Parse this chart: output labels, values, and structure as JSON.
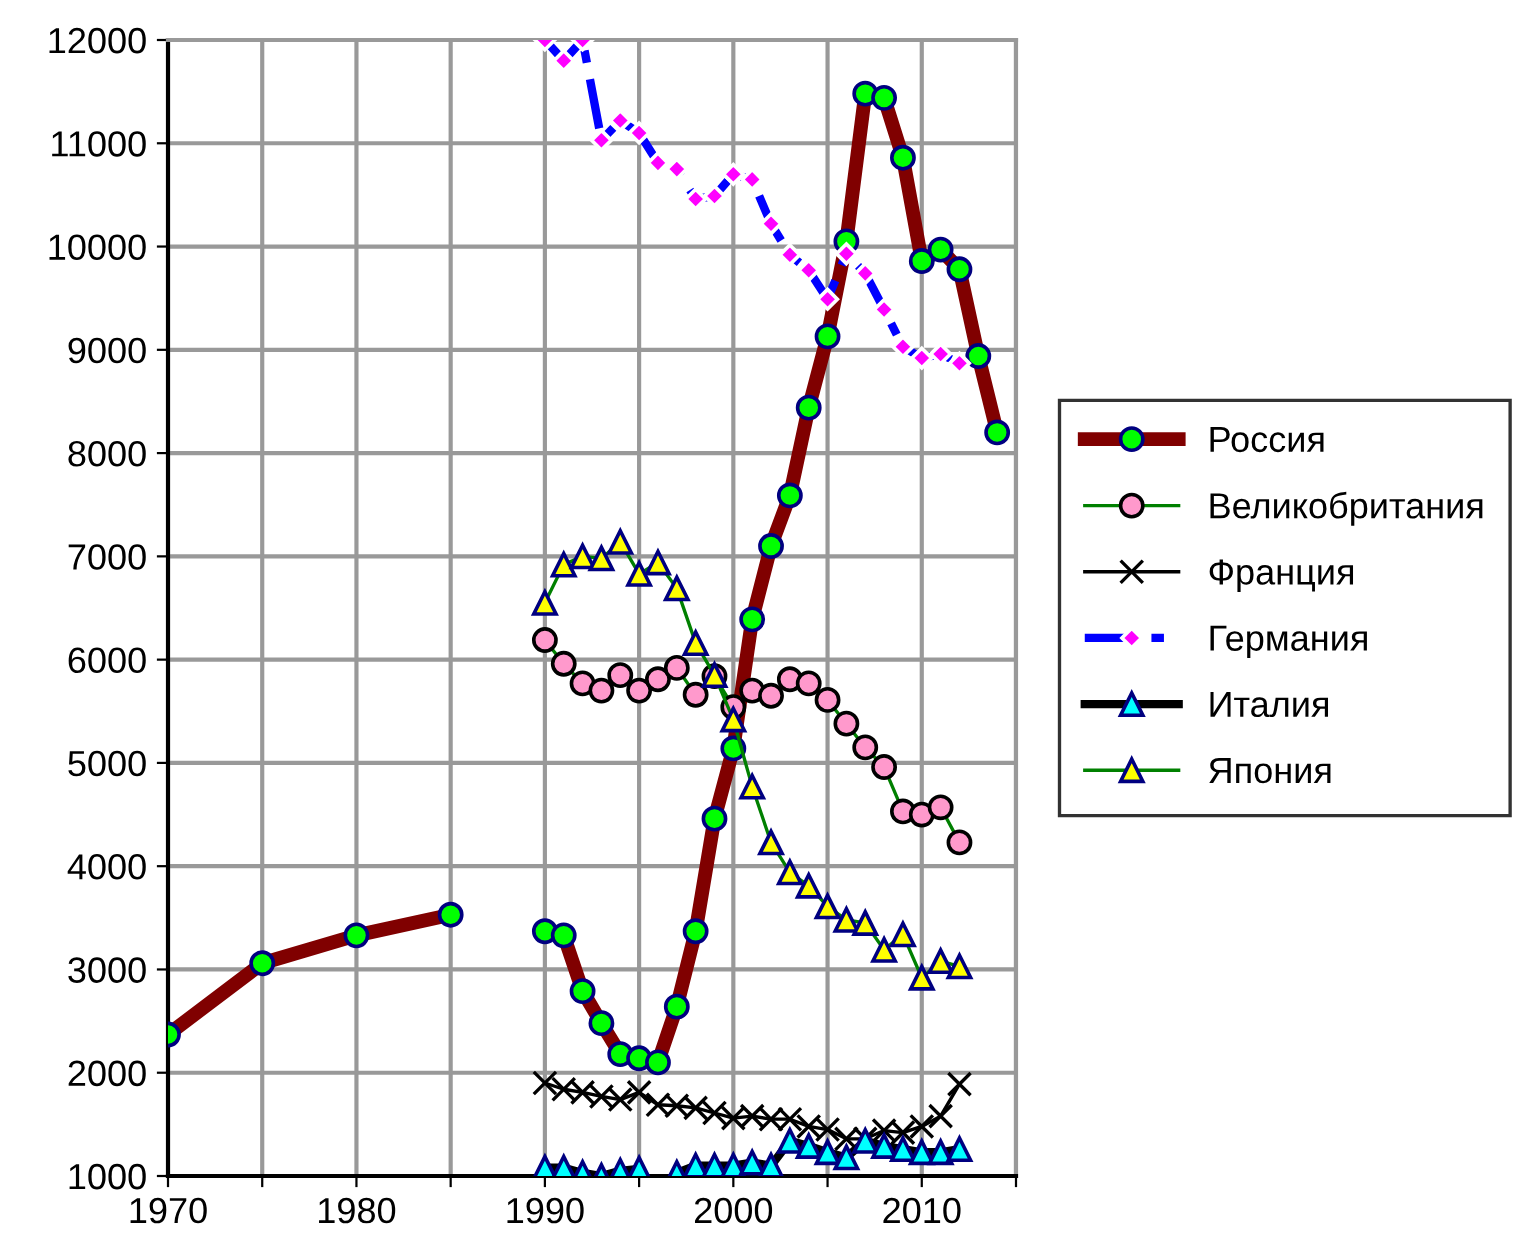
{
  "chart_data": {
    "type": "line",
    "xlim": [
      1970,
      2015
    ],
    "ylim": [
      1000,
      12000
    ],
    "xticks": [
      1970,
      {
        "value": 1975,
        "label": null
      },
      1980,
      {
        "value": 1985,
        "label": null
      },
      1990,
      {
        "value": 1995,
        "label": null
      },
      2000,
      {
        "value": 2005,
        "label": null
      },
      2010,
      {
        "value": 2015,
        "label": null
      }
    ],
    "yticks": [
      1000,
      2000,
      3000,
      4000,
      5000,
      6000,
      7000,
      8000,
      9000,
      10000,
      11000,
      12000
    ],
    "grid": true,
    "legend": "right",
    "series": [
      {
        "name": "Россия",
        "color": "#800000",
        "marker": "circle",
        "x": [
          1970,
          1975,
          1980,
          1985,
          1987,
          1990,
          1991,
          1992,
          1993,
          1994,
          1995,
          1996,
          1997,
          1998,
          1999,
          2000,
          2001,
          2002,
          2003,
          2004,
          2005,
          2006,
          2007,
          2008,
          2009,
          2010,
          2011,
          2012,
          2013,
          2014
        ],
        "values": [
          2370,
          3060,
          3330,
          3530,
          null,
          3370,
          3330,
          2790,
          2480,
          2180,
          2140,
          2100,
          2640,
          3370,
          4460,
          5140,
          6390,
          7100,
          7590,
          8440,
          9130,
          10050,
          11480,
          11440,
          10860,
          9860,
          9970,
          9780,
          8940,
          8200
        ]
      },
      {
        "name": "Великобритания",
        "color": "#008000",
        "marker": "circle",
        "x": [
          1990,
          1991,
          1992,
          1993,
          1994,
          1995,
          1996,
          1997,
          1998,
          1999,
          2000,
          2001,
          2002,
          2003,
          2004,
          2005,
          2006,
          2007,
          2008,
          2009,
          2010,
          2011,
          2012
        ],
        "values": [
          6190,
          5960,
          5770,
          5700,
          5850,
          5700,
          5810,
          5920,
          5660,
          5840,
          5540,
          5700,
          5650,
          5810,
          5770,
          5610,
          5380,
          5150,
          4960,
          4530,
          4500,
          4570,
          4230
        ]
      },
      {
        "name": "Франция",
        "color": "#000000",
        "marker": "cross",
        "x": [
          1990,
          1991,
          1992,
          1993,
          1994,
          1995,
          1996,
          1997,
          1998,
          1999,
          2000,
          2001,
          2002,
          2003,
          2004,
          2005,
          2006,
          2007,
          2008,
          2009,
          2010,
          2011,
          2012
        ],
        "values": [
          1900,
          1840,
          1810,
          1770,
          1740,
          1810,
          1690,
          1680,
          1660,
          1610,
          1560,
          1580,
          1550,
          1550,
          1480,
          1450,
          1360,
          1360,
          1440,
          1420,
          1480,
          1580,
          1890
        ]
      },
      {
        "name": "Германия",
        "color": "#0000ff",
        "marker": "diamond",
        "line_style": "dashed",
        "x": [
          1990,
          1991,
          1992,
          1993,
          1994,
          1995,
          1996,
          1997,
          1998,
          1999,
          2000,
          2001,
          2002,
          2003,
          2004,
          2005,
          2006,
          2007,
          2008,
          2009,
          2010,
          2011,
          2012
        ],
        "values": [
          12000,
          11800,
          12000,
          11030,
          11220,
          11100,
          10810,
          10750,
          10460,
          10490,
          10700,
          10650,
          10220,
          9920,
          9770,
          9490,
          9930,
          9740,
          9390,
          9030,
          8920,
          8960,
          8870
        ]
      },
      {
        "name": "Италия",
        "color": "#000000",
        "marker": "triangle",
        "x": [
          1990,
          1991,
          1992,
          1993,
          1994,
          1995,
          1996,
          1997,
          1998,
          1999,
          2000,
          2001,
          2002,
          2003,
          2004,
          2005,
          2006,
          2007,
          2008,
          2009,
          2010,
          2011,
          2012
        ],
        "values": [
          1080,
          1080,
          1030,
          1000,
          1050,
          1070,
          null,
          1030,
          1100,
          1100,
          1100,
          1130,
          1100,
          1340,
          1290,
          1230,
          1180,
          1340,
          1290,
          1260,
          1230,
          1230,
          1260
        ]
      },
      {
        "name": "Япония",
        "color": "#008000",
        "marker": "triangle",
        "x": [
          1990,
          1991,
          1992,
          1993,
          1994,
          1995,
          1996,
          1997,
          1998,
          1999,
          2000,
          2001,
          2002,
          2003,
          2004,
          2005,
          2006,
          2007,
          2008,
          2009,
          2010,
          2011,
          2012
        ],
        "values": [
          6550,
          6920,
          7000,
          6980,
          7140,
          6830,
          6940,
          6690,
          6160,
          5850,
          5420,
          4770,
          4230,
          3940,
          3810,
          3610,
          3480,
          3450,
          3190,
          3340,
          2920,
          3080,
          3030
        ]
      }
    ]
  }
}
